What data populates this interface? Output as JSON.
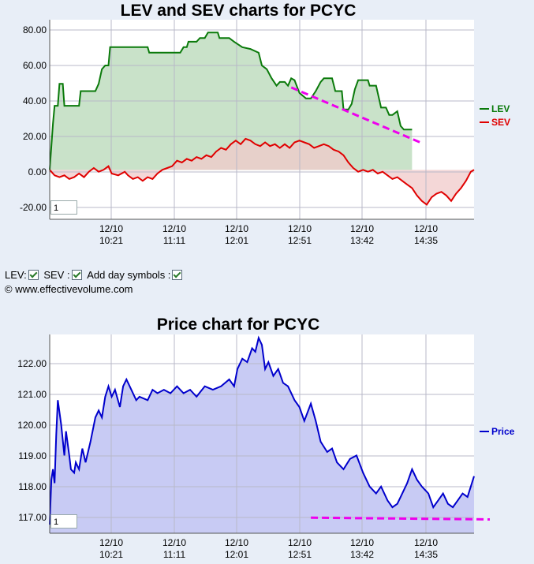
{
  "chart_data": [
    {
      "type": "line",
      "title": "LEV and SEV charts for PCYC",
      "x_tick_labels": [
        [
          "12/10",
          "10:21"
        ],
        [
          "12/10",
          "11:11"
        ],
        [
          "12/10",
          "12:01"
        ],
        [
          "12/10",
          "12:51"
        ],
        [
          "12/10",
          "13:42"
        ],
        [
          "12/10",
          "14:35"
        ]
      ],
      "y_tick_labels": [
        "80.00",
        "60.00",
        "40.00",
        "20.00",
        "0.00",
        "-20.00"
      ],
      "ylim": [
        -27,
        82
      ],
      "grid": true,
      "legend_position": "right",
      "zoom_value": "1",
      "series": [
        {
          "name": "LEV",
          "color": "#0a7a0a",
          "fill": "#c9e2c9",
          "points": [
            [
              0,
              0
            ],
            [
              2,
              25
            ],
            [
              3,
              35
            ],
            [
              5,
              35
            ],
            [
              6,
              47
            ],
            [
              8,
              47
            ],
            [
              9,
              35
            ],
            [
              18,
              35
            ],
            [
              19,
              43
            ],
            [
              28,
              43
            ],
            [
              30,
              47
            ],
            [
              32,
              55
            ],
            [
              34,
              57
            ],
            [
              36,
              57
            ],
            [
              37,
              67
            ],
            [
              40,
              67
            ],
            [
              42,
              67
            ],
            [
              60,
              67
            ],
            [
              61,
              64
            ],
            [
              80,
              64
            ],
            [
              82,
              67
            ],
            [
              84,
              67
            ],
            [
              85,
              70
            ],
            [
              90,
              70
            ],
            [
              92,
              72
            ],
            [
              95,
              72
            ],
            [
              97,
              75
            ],
            [
              103,
              75
            ],
            [
              104,
              72
            ],
            [
              110,
              72
            ],
            [
              113,
              70
            ],
            [
              118,
              67
            ],
            [
              123,
              66
            ],
            [
              128,
              64
            ],
            [
              130,
              57
            ],
            [
              133,
              55
            ],
            [
              136,
              50
            ],
            [
              139,
              46
            ],
            [
              141,
              48
            ],
            [
              144,
              48
            ],
            [
              146,
              46
            ],
            [
              148,
              50
            ],
            [
              150,
              49
            ],
            [
              153,
              42
            ],
            [
              157,
              39
            ],
            [
              160,
              39
            ],
            [
              163,
              43
            ],
            [
              166,
              48
            ],
            [
              168,
              50
            ],
            [
              173,
              50
            ],
            [
              175,
              43
            ],
            [
              179,
              43
            ],
            [
              180,
              33
            ],
            [
              183,
              33
            ],
            [
              185,
              36
            ],
            [
              187,
              44
            ],
            [
              189,
              49
            ],
            [
              195,
              49
            ],
            [
              196,
              46
            ],
            [
              200,
              46
            ],
            [
              203,
              34
            ],
            [
              206,
              34
            ],
            [
              208,
              30
            ],
            [
              210,
              30
            ],
            [
              213,
              32
            ],
            [
              215,
              24
            ],
            [
              217,
              22
            ],
            [
              222,
              22
            ]
          ]
        },
        {
          "name": "SEV",
          "color": "#e00000",
          "fill": "#f0caca",
          "points": [
            [
              0,
              0
            ],
            [
              3,
              -3
            ],
            [
              6,
              -4
            ],
            [
              9,
              -3
            ],
            [
              12,
              -5
            ],
            [
              15,
              -4
            ],
            [
              18,
              -2
            ],
            [
              21,
              -4
            ],
            [
              24,
              -1
            ],
            [
              27,
              1
            ],
            [
              30,
              -1
            ],
            [
              33,
              0
            ],
            [
              36,
              2
            ],
            [
              38,
              -2
            ],
            [
              42,
              -3
            ],
            [
              46,
              -1
            ],
            [
              48,
              -3
            ],
            [
              51,
              -5
            ],
            [
              54,
              -4
            ],
            [
              57,
              -6
            ],
            [
              60,
              -4
            ],
            [
              63,
              -5
            ],
            [
              66,
              -2
            ],
            [
              69,
              0
            ],
            [
              72,
              1
            ],
            [
              75,
              2
            ],
            [
              78,
              5
            ],
            [
              81,
              4
            ],
            [
              84,
              6
            ],
            [
              87,
              5
            ],
            [
              90,
              7
            ],
            [
              93,
              6
            ],
            [
              96,
              8
            ],
            [
              99,
              7
            ],
            [
              102,
              10
            ],
            [
              105,
              12
            ],
            [
              108,
              11
            ],
            [
              111,
              14
            ],
            [
              114,
              16
            ],
            [
              117,
              14
            ],
            [
              120,
              17
            ],
            [
              123,
              16
            ],
            [
              126,
              14
            ],
            [
              129,
              13
            ],
            [
              132,
              15
            ],
            [
              135,
              13
            ],
            [
              138,
              14
            ],
            [
              141,
              12
            ],
            [
              144,
              14
            ],
            [
              147,
              12
            ],
            [
              150,
              15
            ],
            [
              153,
              16
            ],
            [
              156,
              15
            ],
            [
              159,
              14
            ],
            [
              162,
              12
            ],
            [
              165,
              13
            ],
            [
              168,
              14
            ],
            [
              171,
              13
            ],
            [
              174,
              11
            ],
            [
              177,
              10
            ],
            [
              180,
              8
            ],
            [
              183,
              4
            ],
            [
              186,
              1
            ],
            [
              189,
              -1
            ],
            [
              192,
              0
            ],
            [
              195,
              -1
            ],
            [
              198,
              0
            ],
            [
              201,
              -2
            ],
            [
              204,
              -1
            ],
            [
              207,
              -3
            ],
            [
              210,
              -5
            ],
            [
              213,
              -4
            ],
            [
              216,
              -6
            ],
            [
              219,
              -8
            ],
            [
              222,
              -10
            ],
            [
              225,
              -14
            ],
            [
              228,
              -17
            ],
            [
              231,
              -19
            ],
            [
              234,
              -15
            ],
            [
              237,
              -13
            ],
            [
              240,
              -12
            ],
            [
              243,
              -14
            ],
            [
              246,
              -17
            ],
            [
              249,
              -13
            ],
            [
              252,
              -10
            ],
            [
              255,
              -6
            ],
            [
              258,
              -1
            ],
            [
              260,
              0
            ]
          ]
        }
      ],
      "trendline": {
        "color": "#ee00ee",
        "from": [
          148,
          45
        ],
        "to": [
          222,
          16
        ]
      }
    },
    {
      "type": "line",
      "title": "Price chart for PCYC",
      "x_tick_labels": [
        [
          "12/10",
          "10:21"
        ],
        [
          "12/10",
          "11:11"
        ],
        [
          "12/10",
          "12:01"
        ],
        [
          "12/10",
          "12:51"
        ],
        [
          "12/10",
          "13:42"
        ],
        [
          "12/10",
          "14:35"
        ]
      ],
      "y_tick_labels": [
        "122.00",
        "121.00",
        "120.00",
        "119.00",
        "118.00",
        "117.00"
      ],
      "ylim": [
        116.75,
        122.5
      ],
      "grid": true,
      "legend_position": "right",
      "zoom_value": "1",
      "series": [
        {
          "name": "Price",
          "color": "#0000cc",
          "fill": "#c8cbf4",
          "points": [
            [
              0,
              117.0
            ],
            [
              1,
              118.3
            ],
            [
              2,
              118.6
            ],
            [
              3,
              118.2
            ],
            [
              4,
              119.6
            ],
            [
              5,
              120.6
            ],
            [
              7,
              119.9
            ],
            [
              9,
              119.0
            ],
            [
              10,
              119.7
            ],
            [
              12,
              119.0
            ],
            [
              13,
              118.6
            ],
            [
              15,
              118.5
            ],
            [
              16,
              118.8
            ],
            [
              18,
              118.6
            ],
            [
              20,
              119.2
            ],
            [
              22,
              118.8
            ],
            [
              25,
              119.4
            ],
            [
              28,
              120.1
            ],
            [
              30,
              120.3
            ],
            [
              32,
              120.1
            ],
            [
              34,
              120.7
            ],
            [
              36,
              121.0
            ],
            [
              38,
              120.7
            ],
            [
              40,
              120.9
            ],
            [
              43,
              120.4
            ],
            [
              45,
              121.0
            ],
            [
              47,
              121.2
            ],
            [
              50,
              120.9
            ],
            [
              53,
              120.6
            ],
            [
              55,
              120.7
            ],
            [
              60,
              120.6
            ],
            [
              63,
              120.9
            ],
            [
              66,
              120.8
            ],
            [
              70,
              120.9
            ],
            [
              74,
              120.8
            ],
            [
              78,
              121.0
            ],
            [
              82,
              120.8
            ],
            [
              86,
              120.9
            ],
            [
              90,
              120.7
            ],
            [
              95,
              121.0
            ],
            [
              100,
              120.9
            ],
            [
              105,
              121.0
            ],
            [
              110,
              121.2
            ],
            [
              113,
              121.0
            ],
            [
              115,
              121.5
            ],
            [
              118,
              121.8
            ],
            [
              121,
              121.7
            ],
            [
              124,
              122.1
            ],
            [
              126,
              122.0
            ],
            [
              128,
              122.4
            ],
            [
              130,
              122.2
            ],
            [
              132,
              121.5
            ],
            [
              134,
              121.7
            ],
            [
              137,
              121.3
            ],
            [
              140,
              121.5
            ],
            [
              143,
              121.1
            ],
            [
              146,
              121.0
            ],
            [
              150,
              120.6
            ],
            [
              153,
              120.4
            ],
            [
              156,
              120.0
            ],
            [
              160,
              120.5
            ],
            [
              163,
              120.0
            ],
            [
              166,
              119.4
            ],
            [
              170,
              119.1
            ],
            [
              173,
              119.2
            ],
            [
              176,
              118.8
            ],
            [
              180,
              118.6
            ],
            [
              184,
              118.9
            ],
            [
              188,
              119.0
            ],
            [
              192,
              118.5
            ],
            [
              196,
              118.1
            ],
            [
              200,
              117.9
            ],
            [
              203,
              118.1
            ],
            [
              207,
              117.7
            ],
            [
              210,
              117.5
            ],
            [
              213,
              117.6
            ],
            [
              216,
              117.9
            ],
            [
              219,
              118.2
            ],
            [
              222,
              118.6
            ],
            [
              225,
              118.3
            ],
            [
              228,
              118.1
            ],
            [
              232,
              117.9
            ],
            [
              235,
              117.5
            ],
            [
              238,
              117.7
            ],
            [
              241,
              117.9
            ],
            [
              244,
              117.6
            ],
            [
              247,
              117.5
            ],
            [
              250,
              117.7
            ],
            [
              253,
              117.9
            ],
            [
              256,
              117.8
            ],
            [
              258,
              118.1
            ],
            [
              260,
              118.4
            ]
          ]
        }
      ],
      "trendline": {
        "color": "#ee00ee",
        "from": [
          160,
          117.2
        ],
        "to": [
          260,
          117.15
        ]
      }
    }
  ],
  "controls": {
    "lev_label": "LEV:",
    "sev_label": "SEV :",
    "day_symbols_label": "Add day symbols :"
  },
  "copyright": "© www.effectivevolume.com"
}
